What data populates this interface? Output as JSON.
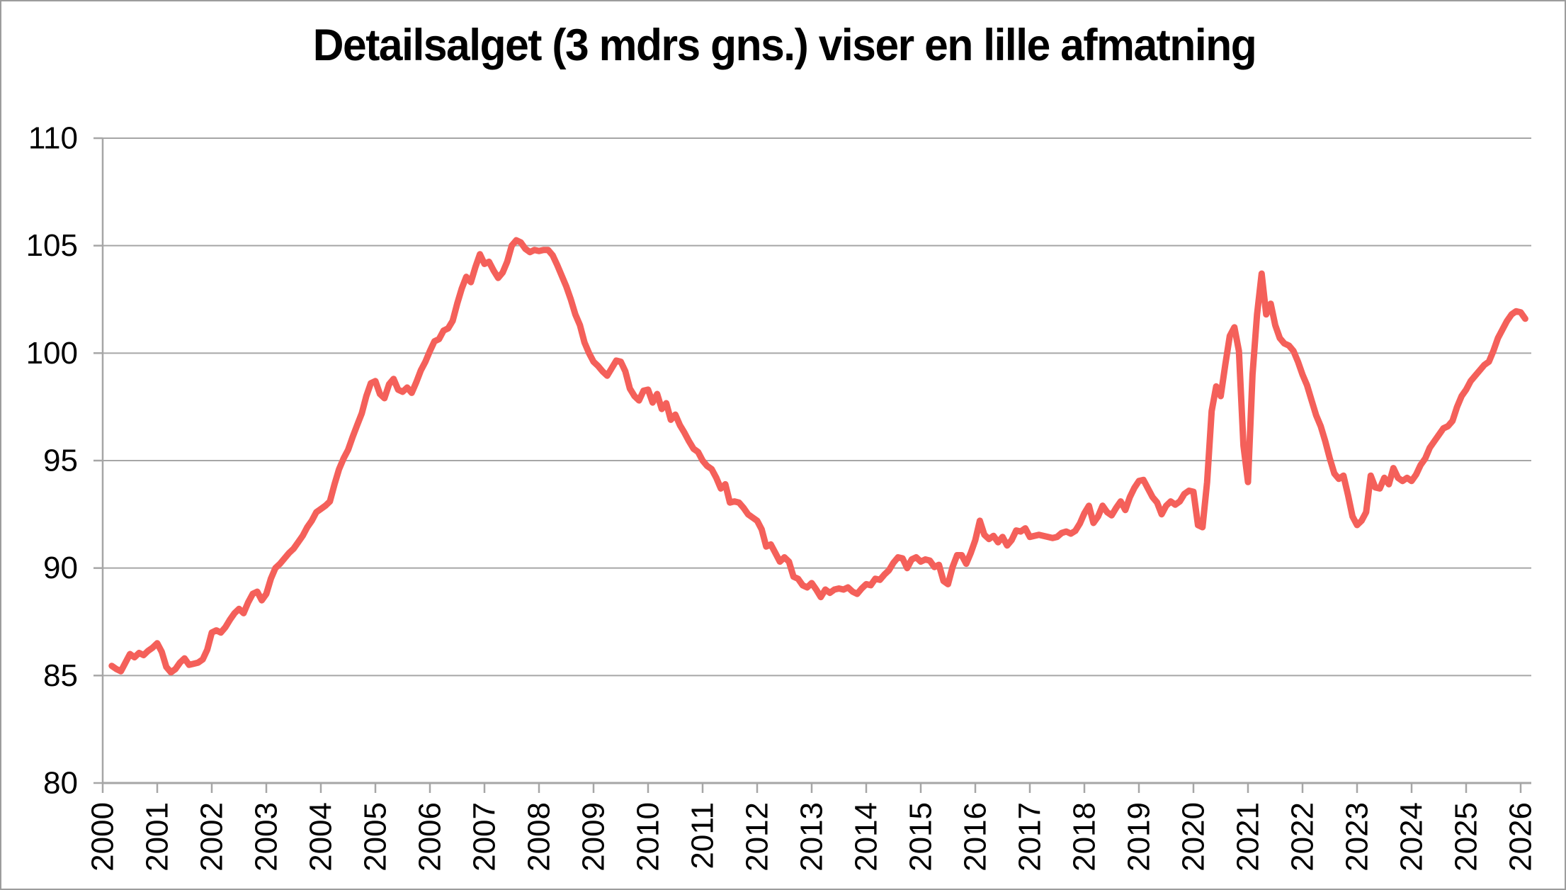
{
  "chart_data": {
    "type": "line",
    "title": "Detailsalget (3 mdrs gns.) viser en lille afmatning",
    "xlabel": "",
    "ylabel": "",
    "ylim": [
      80,
      110
    ],
    "xlim": [
      2000,
      2026.2
    ],
    "grid": "horizontal",
    "legend_position": "none",
    "y_axis_ticks": [
      80,
      85,
      90,
      95,
      100,
      105,
      110
    ],
    "x_axis_ticks": [
      2000,
      2001,
      2002,
      2003,
      2004,
      2005,
      2006,
      2007,
      2008,
      2009,
      2010,
      2011,
      2012,
      2013,
      2014,
      2015,
      2016,
      2017,
      2018,
      2019,
      2020,
      2021,
      2022,
      2023,
      2024,
      2025,
      2026
    ],
    "x_label_rotation_deg": -90,
    "series_description": "3-month moving average of retail sales index, monthly points",
    "x_start_year": 2000,
    "x_start_month": 3,
    "values": [
      85.45,
      85.3,
      85.2,
      85.6,
      86.0,
      85.85,
      86.05,
      85.95,
      86.15,
      86.3,
      86.5,
      86.1,
      85.4,
      85.15,
      85.3,
      85.6,
      85.8,
      85.5,
      85.55,
      85.6,
      85.75,
      86.2,
      87.0,
      87.1,
      87.0,
      87.25,
      87.6,
      87.9,
      88.1,
      87.9,
      88.4,
      88.8,
      88.9,
      88.5,
      88.8,
      89.5,
      90.0,
      90.2,
      90.45,
      90.7,
      90.9,
      91.2,
      91.5,
      91.9,
      92.2,
      92.6,
      92.75,
      92.9,
      93.1,
      93.9,
      94.6,
      95.1,
      95.5,
      96.1,
      96.65,
      97.2,
      98.0,
      98.6,
      98.7,
      98.1,
      97.9,
      98.55,
      98.8,
      98.3,
      98.2,
      98.4,
      98.15,
      98.65,
      99.2,
      99.6,
      100.1,
      100.55,
      100.65,
      101.05,
      101.15,
      101.5,
      102.3,
      103.0,
      103.55,
      103.3,
      104.0,
      104.6,
      104.15,
      104.25,
      103.85,
      103.5,
      103.75,
      104.25,
      105.0,
      105.25,
      105.15,
      104.85,
      104.7,
      104.8,
      104.75,
      104.8,
      104.8,
      104.55,
      104.1,
      103.6,
      103.1,
      102.5,
      101.8,
      101.3,
      100.5,
      100.0,
      99.6,
      99.4,
      99.15,
      98.95,
      99.3,
      99.65,
      99.6,
      99.15,
      98.35,
      98.0,
      97.8,
      98.25,
      98.3,
      97.7,
      98.1,
      97.4,
      97.67,
      96.9,
      97.14,
      96.65,
      96.3,
      95.9,
      95.55,
      95.4,
      95.0,
      94.75,
      94.6,
      94.2,
      93.7,
      93.9,
      93.05,
      93.1,
      93.05,
      92.8,
      92.5,
      92.35,
      92.2,
      91.8,
      91.0,
      91.1,
      90.7,
      90.3,
      90.5,
      90.3,
      89.6,
      89.5,
      89.2,
      89.1,
      89.3,
      89.0,
      88.65,
      89.0,
      88.85,
      89.0,
      89.05,
      89.0,
      89.1,
      88.9,
      88.8,
      89.05,
      89.25,
      89.2,
      89.5,
      89.45,
      89.7,
      89.9,
      90.25,
      90.5,
      90.45,
      90.0,
      90.4,
      90.5,
      90.3,
      90.4,
      90.35,
      90.05,
      90.15,
      89.4,
      89.25,
      90.05,
      90.6,
      90.6,
      90.2,
      90.7,
      91.3,
      92.2,
      91.55,
      91.35,
      91.5,
      91.2,
      91.45,
      91.05,
      91.3,
      91.75,
      91.7,
      91.85,
      91.45,
      91.5,
      91.55,
      91.5,
      91.45,
      91.4,
      91.45,
      91.63,
      91.7,
      91.6,
      91.73,
      92.07,
      92.55,
      92.9,
      92.1,
      92.4,
      92.9,
      92.6,
      92.45,
      92.8,
      93.1,
      92.7,
      93.3,
      93.73,
      94.05,
      94.1,
      93.7,
      93.3,
      93.05,
      92.5,
      92.9,
      93.1,
      92.95,
      93.1,
      93.45,
      93.6,
      93.55,
      92.0,
      91.9,
      94.0,
      97.3,
      98.45,
      98.0,
      99.45,
      100.8,
      101.2,
      100.1,
      95.7,
      94.0,
      99.0,
      101.8,
      103.7,
      101.8,
      102.3,
      101.3,
      100.7,
      100.45,
      100.35,
      100.1,
      99.6,
      99.0,
      98.5,
      97.8,
      97.1,
      96.6,
      95.9,
      95.1,
      94.4,
      94.15,
      94.3,
      93.4,
      92.4,
      92.0,
      92.2,
      92.6,
      94.3,
      93.75,
      93.7,
      94.2,
      93.9,
      94.65,
      94.2,
      94.05,
      94.2,
      94.05,
      94.35,
      94.8,
      95.1,
      95.6,
      95.9,
      96.2,
      96.5,
      96.6,
      96.85,
      97.5,
      98.0,
      98.3,
      98.7,
      98.95,
      99.2,
      99.45,
      99.6,
      100.1,
      100.7,
      101.1,
      101.5,
      101.8,
      101.95,
      101.9,
      101.6
    ]
  },
  "style": {
    "line_color": "#f4605a",
    "grid_color": "#a6a6a6",
    "axis_color": "#a6a6a6",
    "text_color": "#000000",
    "page_border_color": "#9c9c9c",
    "background": "#ffffff"
  }
}
